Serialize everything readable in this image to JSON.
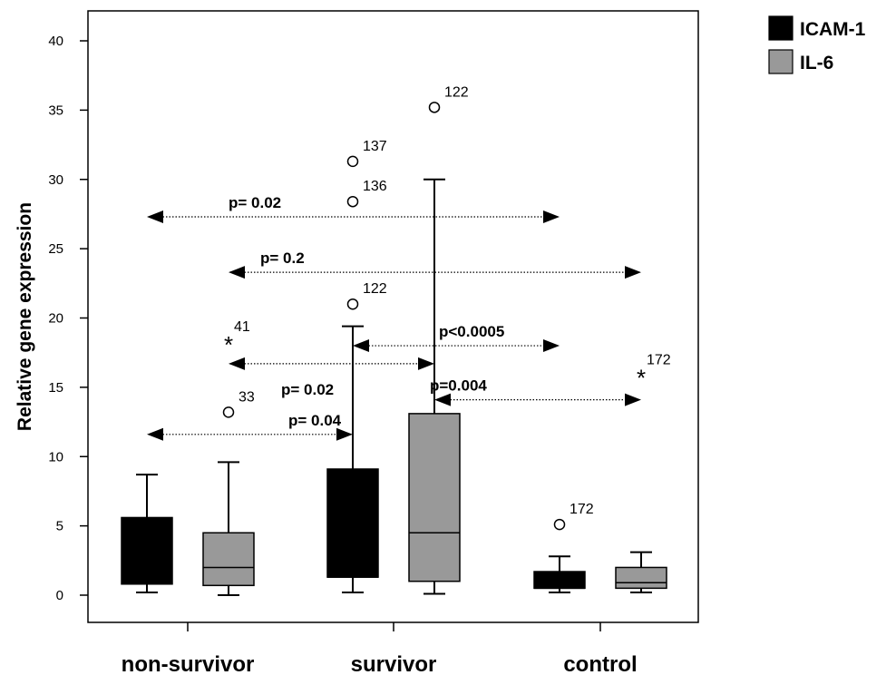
{
  "chart_data": {
    "type": "boxplot",
    "ylabel": "Relative gene expression",
    "xlabel": "",
    "ylim": [
      -2,
      42
    ],
    "yticks": [
      0,
      5,
      10,
      15,
      20,
      25,
      30,
      35,
      40
    ],
    "categories": [
      "non-survivor",
      "survivor",
      "control"
    ],
    "legend": {
      "placement": "top-right-outside"
    },
    "series": [
      {
        "name": "ICAM-1",
        "color": "#000000",
        "boxes": [
          {
            "category": "non-survivor",
            "whisker_low": 0.2,
            "q1": 0.8,
            "median": 0.8,
            "q3": 5.6,
            "whisker_high": 8.7,
            "outliers": []
          },
          {
            "category": "survivor",
            "whisker_low": 0.2,
            "q1": 1.3,
            "median": 1.3,
            "q3": 9.1,
            "whisker_high": 19.4,
            "outliers": [
              {
                "value": 31.3,
                "label": "137",
                "marker": "circle"
              },
              {
                "value": 28.4,
                "label": "136",
                "marker": "circle"
              },
              {
                "value": 21.0,
                "label": "122",
                "marker": "circle"
              }
            ]
          },
          {
            "category": "control",
            "whisker_low": 0.2,
            "q1": 0.5,
            "median": 0.5,
            "q3": 1.7,
            "whisker_high": 2.8,
            "outliers": [
              {
                "value": 5.1,
                "label": "172",
                "marker": "circle"
              }
            ]
          }
        ]
      },
      {
        "name": "IL-6",
        "color": "#999999",
        "boxes": [
          {
            "category": "non-survivor",
            "whisker_low": 0.0,
            "q1": 0.7,
            "median": 2.0,
            "q3": 4.5,
            "whisker_high": 9.6,
            "outliers": [
              {
                "value": 13.2,
                "label": "33",
                "marker": "circle"
              },
              {
                "value": 18.4,
                "label": "41",
                "marker": "star"
              }
            ]
          },
          {
            "category": "survivor",
            "whisker_low": 0.1,
            "q1": 1.0,
            "median": 4.5,
            "q3": 13.1,
            "whisker_high": 30.0,
            "outliers": [
              {
                "value": 35.2,
                "label": "122",
                "marker": "circle"
              }
            ]
          },
          {
            "category": "control",
            "whisker_low": 0.2,
            "q1": 0.5,
            "median": 0.9,
            "q3": 2.0,
            "whisker_high": 3.1,
            "outliers": [
              {
                "value": 16.0,
                "label": "172",
                "marker": "star"
              }
            ]
          }
        ]
      }
    ],
    "comparisons": [
      {
        "label": "p= 0.02",
        "from": {
          "category": "non-survivor",
          "series": "ICAM-1"
        },
        "to": {
          "category": "control",
          "series": "ICAM-1"
        },
        "y": 27.3
      },
      {
        "label": "p= 0.2",
        "from": {
          "category": "non-survivor",
          "series": "IL-6"
        },
        "to": {
          "category": "control",
          "series": "IL-6"
        },
        "y": 23.3
      },
      {
        "label": "p<0.0005",
        "from": {
          "category": "survivor",
          "series": "ICAM-1"
        },
        "to": {
          "category": "control",
          "series": "ICAM-1"
        },
        "y": 18.0
      },
      {
        "label": "p= 0.02",
        "from": {
          "category": "non-survivor",
          "series": "IL-6"
        },
        "to": {
          "category": "survivor",
          "series": "IL-6"
        },
        "y": 16.7
      },
      {
        "label": "p=0.004",
        "from": {
          "category": "survivor",
          "series": "IL-6"
        },
        "to": {
          "category": "control",
          "series": "IL-6"
        },
        "y": 14.1
      },
      {
        "label": "p= 0.04",
        "from": {
          "category": "non-survivor",
          "series": "ICAM-1"
        },
        "to": {
          "category": "survivor",
          "series": "ICAM-1"
        },
        "y": 11.6
      }
    ]
  }
}
